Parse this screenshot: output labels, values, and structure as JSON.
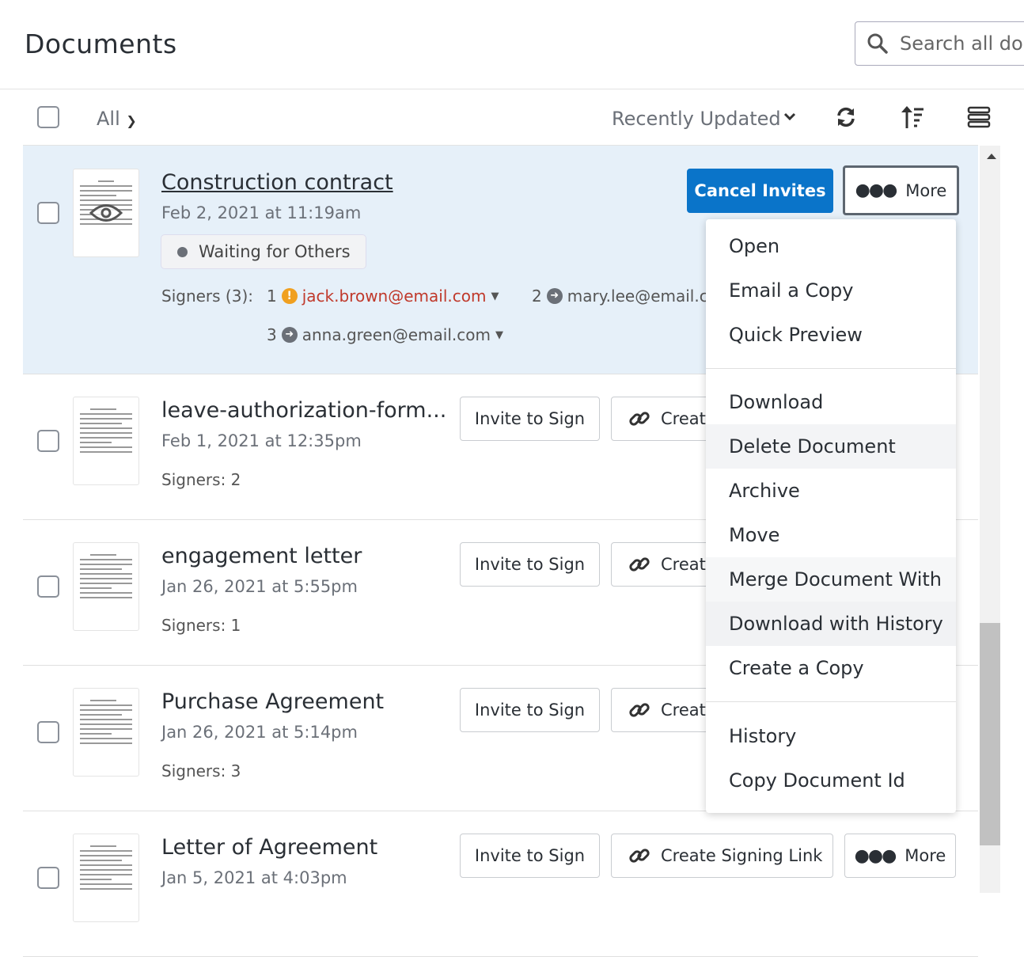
{
  "header": {
    "title": "Documents",
    "search_placeholder": "Search all doc"
  },
  "toolbar": {
    "filter": "All",
    "sort": "Recently Updated"
  },
  "rows": [
    {
      "name": "Construction contract",
      "date": "Feb 2, 2021 at 11:19am",
      "status": "Waiting for Others",
      "signers_label": "Signers (3):",
      "signers": [
        {
          "num": "1",
          "email": "jack.brown@email.com"
        },
        {
          "num": "2",
          "email": "mary.lee@email.c"
        },
        {
          "num": "3",
          "email": "anna.green@email.com"
        }
      ],
      "primary_button": "Cancel Invites",
      "more": "More"
    },
    {
      "name": "leave-authorization-form...",
      "date": "Feb 1, 2021 at 12:35pm",
      "signers": "Signers: 2"
    },
    {
      "name": "engagement letter",
      "date": "Jan 26, 2021 at 5:55pm",
      "signers": "Signers: 1"
    },
    {
      "name": "Purchase Agreement",
      "date": "Jan 26, 2021 at 5:14pm",
      "signers": "Signers: 3"
    },
    {
      "name": "Letter of Agreement",
      "date": "Jan 5, 2021 at 4:03pm"
    }
  ],
  "actions": {
    "invite": "Invite to Sign",
    "link": "Create Signing Link",
    "link_truncated": "Creat",
    "more": "More"
  },
  "menu": [
    "Open",
    "Email a Copy",
    "Quick Preview",
    "Download",
    "Delete Document",
    "Archive",
    "Move",
    "Merge Document With",
    "Download with History",
    "Create a Copy",
    "History",
    "Copy Document Id"
  ],
  "colors": {
    "accent": "#0a74c9",
    "selected_row": "#e6f0f9",
    "warning": "#f0a020",
    "error_text": "#c0392b"
  }
}
